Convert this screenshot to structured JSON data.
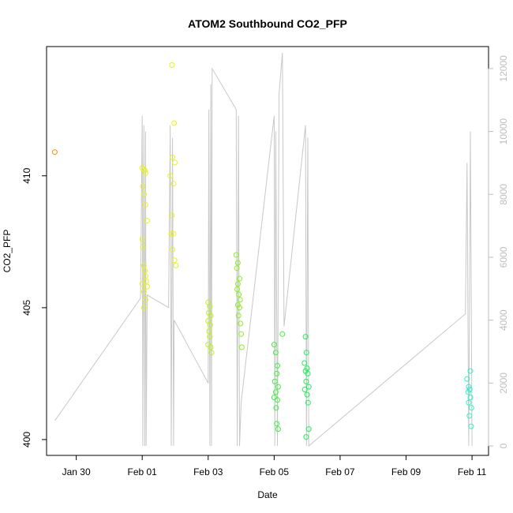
{
  "chart_data": {
    "type": "scatter",
    "title": "ATOM2 Southbound CO2_PFP",
    "xlabel": "Date",
    "ylabel": "CO2_PFP",
    "x_tick_labels": [
      "Jan 30",
      "Feb 01",
      "Feb 03",
      "Feb 05",
      "Feb 07",
      "Feb 09",
      "Feb 11"
    ],
    "x_tick_values": [
      1,
      3,
      5,
      7,
      9,
      11,
      13
    ],
    "xlim": [
      0.1,
      13.5
    ],
    "y_ticks": [
      400,
      405,
      410
    ],
    "ylim": [
      399.4,
      414.9
    ],
    "y2_ticks": [
      0,
      2000,
      4000,
      6000,
      8000,
      10000,
      12000
    ],
    "y2lim": [
      -300,
      12700
    ],
    "grid": false,
    "series": [
      {
        "color_by": "time",
        "points": [
          {
            "x": 0.35,
            "y": 410.9,
            "color": "#ff8c00"
          },
          {
            "x": 3.0,
            "y": 410.3,
            "color": "#e6f21e"
          },
          {
            "x": 3.05,
            "y": 410.25,
            "color": "#e6f21e"
          },
          {
            "x": 3.08,
            "y": 410.2,
            "color": "#e6f21e"
          },
          {
            "x": 3.1,
            "y": 410.1,
            "color": "#e6f21e"
          },
          {
            "x": 3.02,
            "y": 409.6,
            "color": "#e6f21e"
          },
          {
            "x": 3.05,
            "y": 409.3,
            "color": "#e6f21e"
          },
          {
            "x": 3.1,
            "y": 408.9,
            "color": "#e6f21e"
          },
          {
            "x": 3.15,
            "y": 408.3,
            "color": "#e6f21e"
          },
          {
            "x": 3.0,
            "y": 407.6,
            "color": "#e6f21e"
          },
          {
            "x": 3.02,
            "y": 407.3,
            "color": "#e6f21e"
          },
          {
            "x": 3.05,
            "y": 406.6,
            "color": "#e6f21e"
          },
          {
            "x": 3.08,
            "y": 406.4,
            "color": "#e6f21e"
          },
          {
            "x": 3.1,
            "y": 406.2,
            "color": "#e6f21e"
          },
          {
            "x": 3.12,
            "y": 406.0,
            "color": "#e6f21e"
          },
          {
            "x": 3.15,
            "y": 405.8,
            "color": "#e6f21e"
          },
          {
            "x": 3.0,
            "y": 405.9,
            "color": "#e6f21e"
          },
          {
            "x": 3.05,
            "y": 405.6,
            "color": "#e6f21e"
          },
          {
            "x": 3.1,
            "y": 405.3,
            "color": "#e6f21e"
          },
          {
            "x": 3.05,
            "y": 405.0,
            "color": "#e6f21e"
          },
          {
            "x": 3.9,
            "y": 414.2,
            "color": "#e6f21e"
          },
          {
            "x": 3.97,
            "y": 412.0,
            "color": "#e6f21e"
          },
          {
            "x": 3.92,
            "y": 410.7,
            "color": "#e6f21e"
          },
          {
            "x": 3.99,
            "y": 410.5,
            "color": "#e6f21e"
          },
          {
            "x": 3.85,
            "y": 410.0,
            "color": "#e6f21e"
          },
          {
            "x": 3.95,
            "y": 409.7,
            "color": "#e6f21e"
          },
          {
            "x": 3.9,
            "y": 408.5,
            "color": "#e6f21e"
          },
          {
            "x": 3.88,
            "y": 407.8,
            "color": "#e6f21e"
          },
          {
            "x": 3.95,
            "y": 407.8,
            "color": "#e6f21e"
          },
          {
            "x": 3.92,
            "y": 407.2,
            "color": "#e6f21e"
          },
          {
            "x": 3.98,
            "y": 406.8,
            "color": "#e6f21e"
          },
          {
            "x": 4.02,
            "y": 406.6,
            "color": "#e6f21e"
          },
          {
            "x": 5.0,
            "y": 405.2,
            "color": "#bcf01e"
          },
          {
            "x": 5.05,
            "y": 405.05,
            "color": "#bcf01e"
          },
          {
            "x": 5.02,
            "y": 404.8,
            "color": "#bcf01e"
          },
          {
            "x": 5.08,
            "y": 404.7,
            "color": "#bcf01e"
          },
          {
            "x": 5.0,
            "y": 404.5,
            "color": "#bcf01e"
          },
          {
            "x": 5.06,
            "y": 404.35,
            "color": "#bcf01e"
          },
          {
            "x": 5.03,
            "y": 404.1,
            "color": "#bcf01e"
          },
          {
            "x": 5.05,
            "y": 403.9,
            "color": "#bcf01e"
          },
          {
            "x": 5.0,
            "y": 403.6,
            "color": "#bcf01e"
          },
          {
            "x": 5.08,
            "y": 403.5,
            "color": "#bcf01e"
          },
          {
            "x": 5.1,
            "y": 403.3,
            "color": "#bcf01e"
          },
          {
            "x": 5.85,
            "y": 407.0,
            "color": "#8cf01e"
          },
          {
            "x": 5.9,
            "y": 406.7,
            "color": "#8cf01e"
          },
          {
            "x": 5.87,
            "y": 406.5,
            "color": "#8cf01e"
          },
          {
            "x": 5.95,
            "y": 406.1,
            "color": "#8cf01e"
          },
          {
            "x": 5.9,
            "y": 405.9,
            "color": "#8cf01e"
          },
          {
            "x": 5.88,
            "y": 405.7,
            "color": "#8cf01e"
          },
          {
            "x": 5.93,
            "y": 405.5,
            "color": "#8cf01e"
          },
          {
            "x": 5.97,
            "y": 405.3,
            "color": "#8cf01e"
          },
          {
            "x": 5.9,
            "y": 405.1,
            "color": "#8cf01e"
          },
          {
            "x": 5.95,
            "y": 405.0,
            "color": "#8cf01e"
          },
          {
            "x": 5.92,
            "y": 404.7,
            "color": "#8cf01e"
          },
          {
            "x": 5.98,
            "y": 404.4,
            "color": "#8cf01e"
          },
          {
            "x": 6.0,
            "y": 404.0,
            "color": "#8cf01e"
          },
          {
            "x": 6.02,
            "y": 403.5,
            "color": "#8cf01e"
          },
          {
            "x": 7.0,
            "y": 403.6,
            "color": "#3cf03c"
          },
          {
            "x": 7.05,
            "y": 403.3,
            "color": "#3cf03c"
          },
          {
            "x": 7.1,
            "y": 402.8,
            "color": "#3cf03c"
          },
          {
            "x": 7.08,
            "y": 402.5,
            "color": "#3cf03c"
          },
          {
            "x": 7.02,
            "y": 402.2,
            "color": "#3cf03c"
          },
          {
            "x": 7.12,
            "y": 402.0,
            "color": "#3cf03c"
          },
          {
            "x": 7.05,
            "y": 401.8,
            "color": "#3cf03c"
          },
          {
            "x": 7.0,
            "y": 401.6,
            "color": "#3cf03c"
          },
          {
            "x": 7.1,
            "y": 401.5,
            "color": "#3cf03c"
          },
          {
            "x": 7.06,
            "y": 401.2,
            "color": "#3cf03c"
          },
          {
            "x": 7.08,
            "y": 400.6,
            "color": "#3cf03c"
          },
          {
            "x": 7.12,
            "y": 400.4,
            "color": "#3cf03c"
          },
          {
            "x": 7.25,
            "y": 404.0,
            "color": "#3cf03c"
          },
          {
            "x": 7.95,
            "y": 403.9,
            "color": "#1ef05a"
          },
          {
            "x": 7.98,
            "y": 403.3,
            "color": "#1ef05a"
          },
          {
            "x": 7.92,
            "y": 402.9,
            "color": "#1ef05a"
          },
          {
            "x": 8.0,
            "y": 402.7,
            "color": "#1ef05a"
          },
          {
            "x": 7.95,
            "y": 402.6,
            "color": "#1ef05a"
          },
          {
            "x": 8.02,
            "y": 402.5,
            "color": "#1ef05a"
          },
          {
            "x": 7.97,
            "y": 402.2,
            "color": "#1ef05a"
          },
          {
            "x": 8.05,
            "y": 402.0,
            "color": "#1ef05a"
          },
          {
            "x": 7.93,
            "y": 401.9,
            "color": "#1ef05a"
          },
          {
            "x": 8.0,
            "y": 401.7,
            "color": "#1ef05a"
          },
          {
            "x": 8.03,
            "y": 401.4,
            "color": "#1ef05a"
          },
          {
            "x": 8.05,
            "y": 400.4,
            "color": "#1ef05a"
          },
          {
            "x": 7.97,
            "y": 400.1,
            "color": "#1ef05a"
          },
          {
            "x": 12.85,
            "y": 402.3,
            "color": "#2ef0c8"
          },
          {
            "x": 12.9,
            "y": 402.0,
            "color": "#2ef0c8"
          },
          {
            "x": 12.93,
            "y": 401.9,
            "color": "#2ef0c8"
          },
          {
            "x": 12.88,
            "y": 401.8,
            "color": "#2ef0c8"
          },
          {
            "x": 12.95,
            "y": 401.6,
            "color": "#2ef0c8"
          },
          {
            "x": 12.9,
            "y": 401.4,
            "color": "#2ef0c8"
          },
          {
            "x": 12.98,
            "y": 401.2,
            "color": "#2ef0c8"
          },
          {
            "x": 12.92,
            "y": 400.9,
            "color": "#2ef0c8"
          },
          {
            "x": 12.97,
            "y": 400.5,
            "color": "#2ef0c8"
          },
          {
            "x": 12.95,
            "y": 402.6,
            "color": "#2ef0c8"
          }
        ]
      },
      {
        "name": "",
        "axis": "right",
        "type": "line",
        "color": "#c8c8c8",
        "points": [
          [
            0.35,
            800
          ],
          [
            2.95,
            4700
          ],
          [
            3.0,
            10500
          ],
          [
            3.02,
            0
          ],
          [
            3.05,
            10200
          ],
          [
            3.08,
            0
          ],
          [
            3.1,
            10000
          ],
          [
            3.12,
            0
          ],
          [
            3.15,
            4800
          ],
          [
            3.8,
            4400
          ],
          [
            3.85,
            10200
          ],
          [
            3.88,
            0
          ],
          [
            3.92,
            9800
          ],
          [
            3.95,
            0
          ],
          [
            3.97,
            4000
          ],
          [
            5.0,
            2000
          ],
          [
            5.02,
            10700
          ],
          [
            5.05,
            0
          ],
          [
            5.08,
            11500
          ],
          [
            5.1,
            0
          ],
          [
            5.12,
            12000
          ],
          [
            5.85,
            10700
          ],
          [
            5.88,
            0
          ],
          [
            5.92,
            10500
          ],
          [
            5.95,
            0
          ],
          [
            6.0,
            1400
          ],
          [
            7.0,
            10500
          ],
          [
            7.02,
            0
          ],
          [
            7.05,
            10000
          ],
          [
            7.1,
            0
          ],
          [
            7.15,
            11200
          ],
          [
            7.25,
            12500
          ],
          [
            7.3,
            3800
          ],
          [
            7.95,
            10200
          ],
          [
            7.98,
            0
          ],
          [
            8.02,
            9800
          ],
          [
            8.05,
            0
          ],
          [
            12.8,
            4200
          ],
          [
            12.85,
            9000
          ],
          [
            12.9,
            0
          ],
          [
            12.95,
            10000
          ],
          [
            13.0,
            0
          ]
        ]
      }
    ]
  }
}
